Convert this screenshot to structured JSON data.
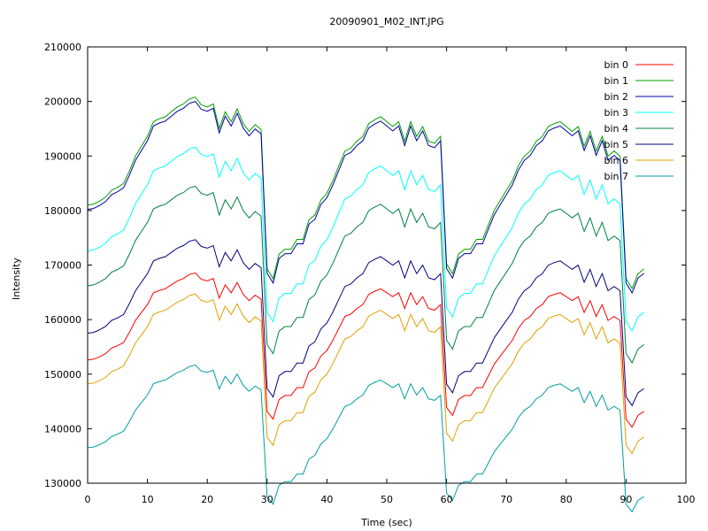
{
  "chart_data": {
    "type": "line",
    "title": "20090901_M02_INT.JPG",
    "xlabel": "Time (sec)",
    "ylabel": "Intensity",
    "xlim": [
      0,
      100
    ],
    "ylim": [
      130000,
      210000
    ],
    "x_ticks": [
      "0",
      "10",
      "20",
      "30",
      "40",
      "50",
      "60",
      "70",
      "80",
      "90",
      "100"
    ],
    "y_ticks": [
      "130000",
      "140000",
      "150000",
      "160000",
      "170000",
      "180000",
      "190000",
      "200000",
      "210000"
    ],
    "grid": false,
    "legend_position": "top-right",
    "x": [
      0,
      1,
      2,
      3,
      4,
      5,
      6,
      7,
      8,
      9,
      10,
      11,
      12,
      13,
      14,
      15,
      16,
      17,
      18,
      19,
      20,
      21,
      22,
      23,
      24,
      25,
      26,
      27,
      28,
      29,
      30,
      31,
      32,
      33,
      34,
      35,
      36,
      37,
      38,
      39,
      40,
      41,
      42,
      43,
      44,
      45,
      46,
      47,
      48,
      49,
      50,
      51,
      52,
      53,
      54,
      55,
      56,
      57,
      58,
      59,
      60,
      61,
      62,
      63,
      64,
      65,
      66,
      67,
      68,
      69,
      70,
      71,
      72,
      73,
      74,
      75,
      76,
      77,
      78,
      79,
      80,
      81,
      82,
      83,
      84,
      85,
      86,
      87,
      88,
      89,
      90,
      91,
      92,
      93
    ],
    "base_profile": [
      0,
      0.1,
      0.4,
      0.8,
      1.5,
      1.8,
      2.2,
      3.5,
      5.0,
      6.0,
      7.0,
      8.5,
      8.8,
      9.0,
      9.5,
      10.0,
      10.3,
      10.8,
      11.0,
      10.2,
      10.0,
      10.3,
      7.8,
      9.5,
      8.5,
      9.8,
      8.3,
      7.5,
      8.2,
      7.7,
      -6.5,
      -7.5,
      -5.0,
      -4.5,
      -4.5,
      -3.5,
      -3.5,
      -1.5,
      -1.0,
      0.5,
      1.2,
      2.5,
      4.0,
      5.5,
      5.8,
      6.5,
      7.0,
      8.3,
      8.7,
      9.0,
      8.5,
      8.0,
      8.5,
      6.5,
      8.5,
      7.0,
      8.0,
      6.5,
      6.3,
      7.0,
      -6.0,
      -7.0,
      -5.0,
      -4.5,
      -4.5,
      -3.5,
      -3.5,
      -2.0,
      -0.5,
      0.5,
      1.5,
      2.5,
      4.0,
      5.0,
      5.5,
      6.5,
      7.0,
      8.0,
      8.3,
      8.5,
      8.0,
      7.5,
      8.0,
      6.0,
      7.5,
      5.5,
      7.0,
      5.0,
      5.5,
      5.0,
      -7.5,
      -8.5,
      -7.0,
      -6.5
    ],
    "series": [
      {
        "name": "bin 0",
        "color": "#ff0000",
        "start": 152600,
        "scale": 1.45
      },
      {
        "name": "bin 1",
        "color": "#00a000",
        "start": 181000,
        "scale": 1.8
      },
      {
        "name": "bin 2",
        "color": "#0000a0",
        "start": 180200,
        "scale": 1.8
      },
      {
        "name": "bin 3",
        "color": "#00ffff",
        "start": 172600,
        "scale": 1.73
      },
      {
        "name": "bin 4",
        "color": "#008040",
        "start": 166200,
        "scale": 1.66
      },
      {
        "name": "bin 5",
        "color": "#000080",
        "start": 157500,
        "scale": 1.56
      },
      {
        "name": "bin 6",
        "color": "#e0a000",
        "start": 148200,
        "scale": 1.5
      },
      {
        "name": "bin 7",
        "color": "#00a0a0",
        "start": 136500,
        "scale": 1.38
      }
    ]
  }
}
